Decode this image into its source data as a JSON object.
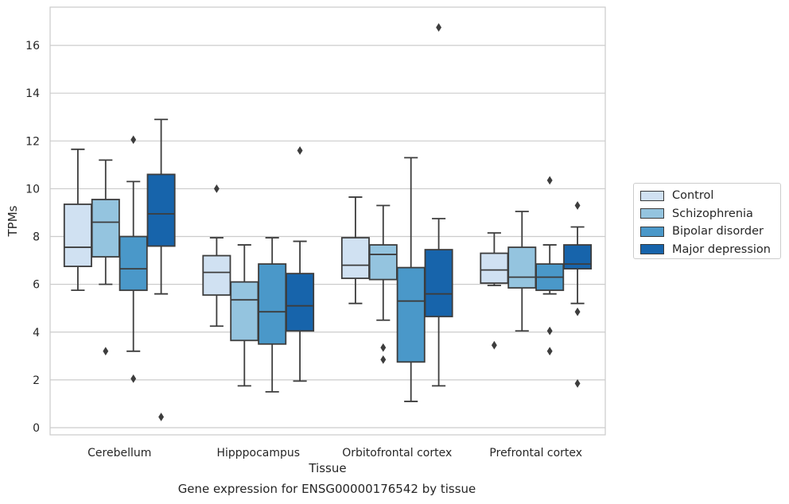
{
  "caption": "Gene expression for ENSG00000176542 by tissue",
  "chart_data": {
    "type": "box",
    "xlabel": "Tissue",
    "ylabel": "TPMs",
    "ylim": [
      -0.3,
      17.6
    ],
    "yticks": [
      0,
      2,
      4,
      6,
      8,
      10,
      12,
      14,
      16
    ],
    "grid": "horizontal",
    "legend_position": "right",
    "categories": [
      "Cerebellum",
      "Hipppocampus",
      "Orbitofrontal cortex",
      "Prefrontal cortex"
    ],
    "series": [
      {
        "name": "Control",
        "color": "#d0e1f2",
        "boxes": [
          {
            "whislo": 5.75,
            "q1": 6.75,
            "med": 7.55,
            "q3": 9.35,
            "whishi": 11.65,
            "fliers": []
          },
          {
            "whislo": 4.25,
            "q1": 5.55,
            "med": 6.5,
            "q3": 7.2,
            "whishi": 7.95,
            "fliers": [
              10.0
            ]
          },
          {
            "whislo": 5.2,
            "q1": 6.25,
            "med": 6.8,
            "q3": 7.95,
            "whishi": 9.65,
            "fliers": []
          },
          {
            "whislo": 5.95,
            "q1": 6.05,
            "med": 6.6,
            "q3": 7.3,
            "whishi": 8.15,
            "fliers": [
              3.45
            ]
          }
        ]
      },
      {
        "name": "Schizophrenia",
        "color": "#94c4df",
        "boxes": [
          {
            "whislo": 6.0,
            "q1": 7.15,
            "med": 8.6,
            "q3": 9.55,
            "whishi": 11.2,
            "fliers": [
              3.2
            ]
          },
          {
            "whislo": 1.75,
            "q1": 3.65,
            "med": 5.35,
            "q3": 6.1,
            "whishi": 7.65,
            "fliers": []
          },
          {
            "whislo": 4.5,
            "q1": 6.2,
            "med": 7.25,
            "q3": 7.65,
            "whishi": 9.3,
            "fliers": [
              3.35,
              2.85
            ]
          },
          {
            "whislo": 4.05,
            "q1": 5.85,
            "med": 6.3,
            "q3": 7.55,
            "whishi": 9.05,
            "fliers": []
          }
        ]
      },
      {
        "name": "Bipolar disorder",
        "color": "#4a98c9",
        "boxes": [
          {
            "whislo": 3.2,
            "q1": 5.75,
            "med": 6.65,
            "q3": 8.0,
            "whishi": 10.3,
            "fliers": [
              12.05,
              2.05
            ]
          },
          {
            "whislo": 1.5,
            "q1": 3.5,
            "med": 4.85,
            "q3": 6.85,
            "whishi": 7.95,
            "fliers": []
          },
          {
            "whislo": 1.1,
            "q1": 2.75,
            "med": 5.3,
            "q3": 6.7,
            "whishi": 11.3,
            "fliers": []
          },
          {
            "whislo": 5.6,
            "q1": 5.75,
            "med": 6.3,
            "q3": 6.85,
            "whishi": 7.65,
            "fliers": [
              10.35,
              4.05,
              3.2
            ]
          }
        ]
      },
      {
        "name": "Major depression",
        "color": "#1764ab",
        "boxes": [
          {
            "whislo": 5.6,
            "q1": 7.6,
            "med": 8.95,
            "q3": 10.6,
            "whishi": 12.9,
            "fliers": [
              0.45
            ]
          },
          {
            "whislo": 1.95,
            "q1": 4.05,
            "med": 5.1,
            "q3": 6.45,
            "whishi": 7.8,
            "fliers": [
              11.6
            ]
          },
          {
            "whislo": 1.75,
            "q1": 4.65,
            "med": 5.6,
            "q3": 7.45,
            "whishi": 8.75,
            "fliers": [
              16.75
            ]
          },
          {
            "whislo": 5.2,
            "q1": 6.65,
            "med": 6.85,
            "q3": 7.65,
            "whishi": 8.4,
            "fliers": [
              9.3,
              4.85,
              1.85
            ]
          }
        ]
      }
    ]
  }
}
